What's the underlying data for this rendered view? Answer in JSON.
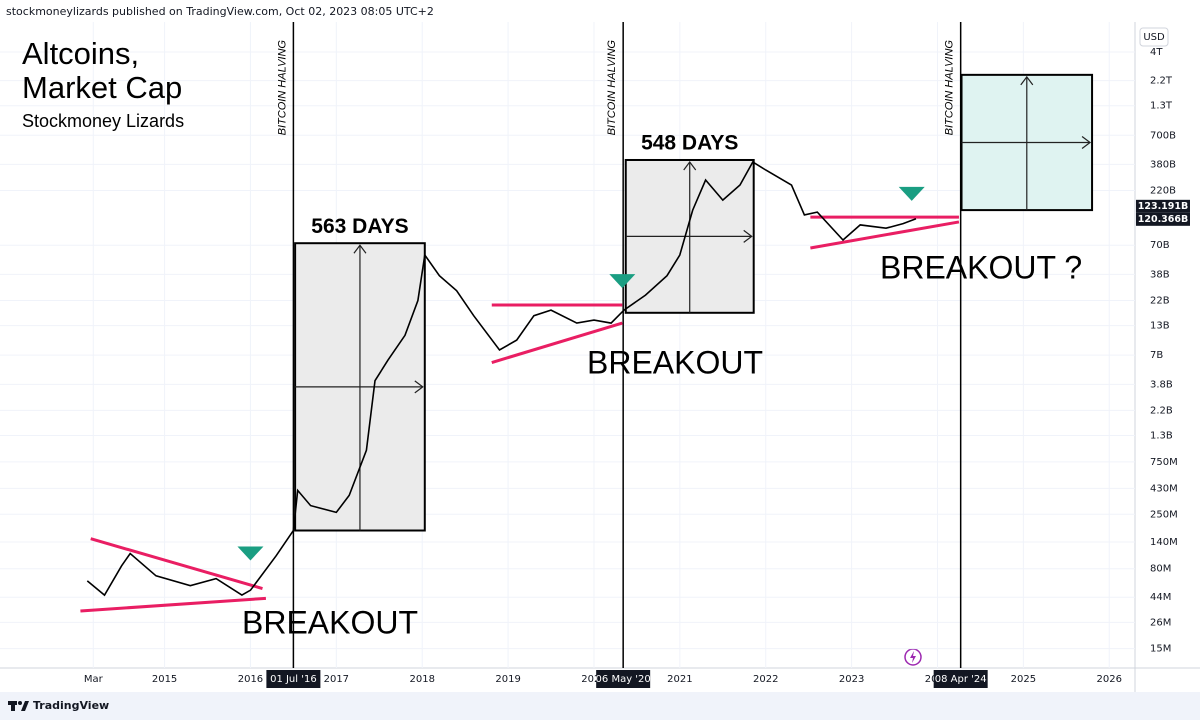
{
  "header": {
    "text": "stockmoneylizards published on TradingView.com, Oct 02, 2023 08:05 UTC+2"
  },
  "footer": {
    "brand": "TradingView"
  },
  "chart_data": {
    "type": "line",
    "title_lines": [
      "Altcoins,",
      "Market Cap"
    ],
    "subtitle": "Stockmoney Lizards",
    "currency": "USD",
    "color": "#000000",
    "log_y": true,
    "grid": true,
    "x": [
      2014.1,
      2014.3,
      2014.5,
      2014.6,
      2014.9,
      2015.3,
      2015.6,
      2015.9,
      2016.0,
      2016.3,
      2016.5,
      2016.55,
      2016.7,
      2017.0,
      2017.15,
      2017.35,
      2017.45,
      2017.6,
      2017.8,
      2017.95,
      2018.03,
      2018.2,
      2018.4,
      2018.6,
      2018.9,
      2019.1,
      2019.3,
      2019.5,
      2019.8,
      2020.0,
      2020.2,
      2020.35,
      2020.6,
      2020.85,
      2021.0,
      2021.15,
      2021.3,
      2021.5,
      2021.7,
      2021.85,
      2022.0,
      2022.3,
      2022.45,
      2022.6,
      2022.9,
      2023.1,
      2023.4,
      2023.6,
      2023.75
    ],
    "values": [
      62000000,
      46000000,
      85000000,
      110000000,
      69000000,
      56000000,
      65000000,
      46000000,
      51000000,
      105000000,
      178000000,
      412000000,
      300000000,
      260000000,
      371000000,
      954000000,
      4100000000,
      6300000000,
      10600000000,
      22000000000,
      57000000000,
      37000000000,
      27000000000,
      16000000000,
      7800000000,
      9600000000,
      16000000000,
      18000000000,
      13700000000,
      14600000000,
      13700000000,
      18000000000,
      24600000000,
      37000000000,
      57000000000,
      146000000000,
      274000000000,
      180000000000,
      247000000000,
      400000000000,
      338000000000,
      247000000000,
      132000000000,
      140000000000,
      78000000000,
      107000000000,
      100000000000,
      110000000000,
      122000000000
    ],
    "xlim": [
      2013.2,
      2026.3
    ],
    "xticks": [
      {
        "value": 2014.17,
        "label": "Mar"
      },
      2015,
      2016,
      2017,
      2018,
      2019,
      2020,
      2021,
      2022,
      2023,
      2024,
      2025,
      2026
    ],
    "ylim": [
      10000000,
      7500000000000
    ],
    "yticks": [
      {
        "value": 4000000000000,
        "label": "4T"
      },
      {
        "value": 2200000000000,
        "label": "2.2T"
      },
      {
        "value": 1300000000000,
        "label": "1.3T"
      },
      {
        "value": 700000000000,
        "label": "700B"
      },
      {
        "value": 380000000000,
        "label": "380B"
      },
      {
        "value": 220000000000,
        "label": "220B"
      },
      {
        "value": 70000000000,
        "label": "70B"
      },
      {
        "value": 38000000000,
        "label": "38B"
      },
      {
        "value": 22000000000,
        "label": "22B"
      },
      {
        "value": 13000000000,
        "label": "13B"
      },
      {
        "value": 7000000000,
        "label": "7B"
      },
      {
        "value": 3800000000,
        "label": "3.8B"
      },
      {
        "value": 2200000000,
        "label": "2.2B"
      },
      {
        "value": 1300000000,
        "label": "1.3B"
      },
      {
        "value": 750000000,
        "label": "750M"
      },
      {
        "value": 430000000,
        "label": "430M"
      },
      {
        "value": 250000000,
        "label": "250M"
      },
      {
        "value": 140000000,
        "label": "140M"
      },
      {
        "value": 80000000,
        "label": "80M"
      },
      {
        "value": 44000000,
        "label": "44M"
      },
      {
        "value": 26000000,
        "label": "26M"
      },
      {
        "value": 15000000,
        "label": "15M"
      }
    ],
    "last_values": [
      {
        "value": 123191000000,
        "label": "123.191B"
      },
      {
        "value": 120366000000,
        "label": "120.366B"
      }
    ],
    "halvings": [
      {
        "x": 2016.5,
        "label": "BITCOIN HALVING",
        "date_label": "01 Jul '16"
      },
      {
        "x": 2020.34,
        "label": "BITCOIN HALVING",
        "date_label": "06 May '20"
      },
      {
        "x": 2024.27,
        "label": "BITCOIN HALVING",
        "date_label": "08 Apr '24"
      }
    ],
    "boxes": [
      {
        "x": [
          2016.52,
          2018.03
        ],
        "y": [
          178000000,
          73000000000
        ],
        "label": "563 DAYS",
        "color": "#ebebeb",
        "stroke": "#000000"
      },
      {
        "x": [
          2020.37,
          2021.86
        ],
        "y": [
          17000000000,
          417000000000
        ],
        "label": "548 DAYS",
        "color": "#ebebeb",
        "stroke": "#000000"
      },
      {
        "x": [
          2024.28,
          2025.8
        ],
        "y": [
          146000000000,
          2480000000000
        ],
        "color": "#dff3f1",
        "stroke": "#000000"
      }
    ],
    "trendline_color": "#e91e63",
    "trendlines": [
      {
        "x": [
          2014.14,
          2016.14
        ],
        "y": [
          150000000,
          52800000
        ]
      },
      {
        "x": [
          2014.02,
          2016.18
        ],
        "y": [
          33000000,
          43000000
        ]
      },
      {
        "x": [
          2018.81,
          2020.33
        ],
        "y": [
          20000000000,
          20000000000
        ]
      },
      {
        "x": [
          2018.81,
          2020.33
        ],
        "y": [
          6000000000,
          13700000000
        ]
      },
      {
        "x": [
          2022.52,
          2024.25
        ],
        "y": [
          126000000000,
          126000000000
        ]
      },
      {
        "x": [
          2022.52,
          2024.25
        ],
        "y": [
          66000000000,
          114000000000
        ]
      }
    ],
    "signal_color": "#1a9e82",
    "signals": {
      "x": [
        2016.0,
        2020.33,
        2023.7
      ],
      "y": [
        110000000,
        33000000000,
        205000000000
      ]
    },
    "annotations": [
      "BREAKOUT",
      "BREAKOUT",
      "BREAKOUT ?"
    ]
  }
}
